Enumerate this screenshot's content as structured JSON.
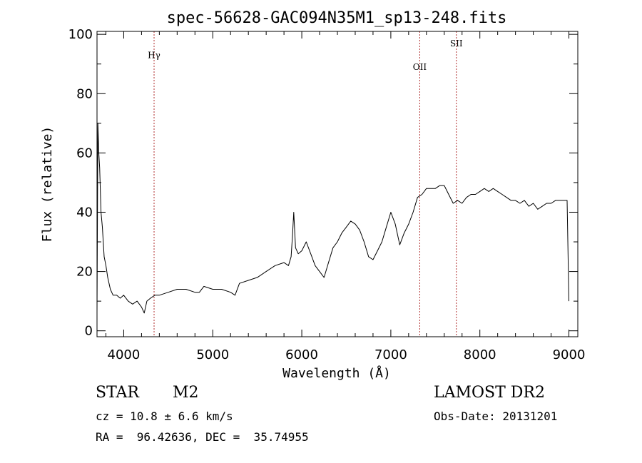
{
  "chart_data": {
    "type": "line",
    "title": "spec-56628-GAC094N35M1_sp13-248.fits",
    "xlabel": "Wavelength (Å)",
    "ylabel": "Flux (relative)",
    "xlim": [
      3700,
      9100
    ],
    "ylim": [
      -2,
      101
    ],
    "xticks": [
      4000,
      5000,
      6000,
      7000,
      8000,
      9000
    ],
    "yticks": [
      0,
      20,
      40,
      60,
      80,
      100
    ],
    "grid": false,
    "series": [
      {
        "color": "#000000",
        "x": [
          3700,
          3710,
          3720,
          3730,
          3745,
          3760,
          3780,
          3800,
          3820,
          3850,
          3880,
          3920,
          3960,
          4000,
          4050,
          4100,
          4150,
          4200,
          4230,
          4260,
          4300,
          4350,
          4400,
          4500,
          4600,
          4700,
          4800,
          4850,
          4900,
          5000,
          5100,
          5200,
          5250,
          5300,
          5400,
          5500,
          5600,
          5700,
          5800,
          5850,
          5880,
          5895,
          5910,
          5930,
          5960,
          6000,
          6050,
          6100,
          6150,
          6200,
          6250,
          6300,
          6350,
          6400,
          6450,
          6500,
          6550,
          6600,
          6650,
          6700,
          6750,
          6800,
          6850,
          6900,
          6950,
          7000,
          7050,
          7100,
          7150,
          7200,
          7250,
          7300,
          7350,
          7400,
          7450,
          7500,
          7550,
          7600,
          7650,
          7700,
          7750,
          7800,
          7850,
          7900,
          7950,
          8000,
          8050,
          8100,
          8150,
          8200,
          8250,
          8300,
          8350,
          8400,
          8450,
          8500,
          8550,
          8600,
          8650,
          8700,
          8750,
          8800,
          8850,
          8900,
          8950,
          8980,
          9000
        ],
        "y": [
          6,
          70,
          60,
          55,
          40,
          35,
          25,
          22,
          18,
          14,
          12,
          12,
          11,
          12,
          10,
          9,
          10,
          8,
          6,
          10,
          11,
          12,
          12,
          13,
          14,
          14,
          13,
          13,
          15,
          14,
          14,
          13,
          12,
          16,
          17,
          18,
          20,
          22,
          23,
          22,
          25,
          32,
          40,
          28,
          26,
          27,
          30,
          26,
          22,
          20,
          18,
          23,
          28,
          30,
          33,
          35,
          37,
          36,
          34,
          30,
          25,
          24,
          27,
          30,
          35,
          40,
          36,
          29,
          33,
          36,
          40,
          45,
          46,
          48,
          48,
          48,
          49,
          49,
          46,
          43,
          44,
          43,
          45,
          46,
          46,
          47,
          48,
          47,
          48,
          47,
          46,
          45,
          44,
          44,
          43,
          44,
          42,
          43,
          41,
          42,
          43,
          43,
          44,
          44,
          44,
          44,
          10
        ]
      }
    ],
    "annotations": [
      {
        "label": "Hγ",
        "x": 4341,
        "label_y": 92
      },
      {
        "label": "OII",
        "x": 7325,
        "label_y": 88
      },
      {
        "label": "SII",
        "x": 7736,
        "label_y": 96
      }
    ],
    "annotation_line_color": "#b03030"
  },
  "info": {
    "object_type": "STAR",
    "subclass": "M2",
    "survey": "LAMOST DR2",
    "redshift": "cz = 10.8 ± 6.6 km/s",
    "obs_date": "Obs-Date: 20131201",
    "coords": "RA =  96.42636, DEC =  35.74955"
  }
}
